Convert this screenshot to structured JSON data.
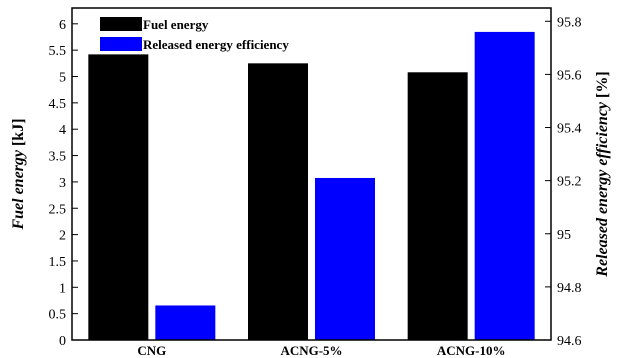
{
  "chart_data": {
    "type": "bar",
    "categories": [
      "CNG",
      "ACNG-5%",
      "ACNG-10%"
    ],
    "series": [
      {
        "name": "Fuel energy",
        "axis": "left",
        "color": "#000000",
        "values": [
          5.42,
          5.25,
          5.08
        ]
      },
      {
        "name": "Released energy efficiency",
        "axis": "right",
        "color": "#0000ff",
        "values": [
          94.73,
          95.21,
          95.76
        ]
      }
    ],
    "y_left": {
      "label_italic": "Fuel energy",
      "label_unit": " [kJ]",
      "range": [
        0,
        6.3
      ],
      "ticks": [
        "0",
        "0.5",
        "1",
        "1.5",
        "2",
        "2.5",
        "3",
        "3.5",
        "4",
        "4.5",
        "5",
        "5.5",
        "6"
      ],
      "tick_values": [
        0,
        0.5,
        1,
        1.5,
        2,
        2.5,
        3,
        3.5,
        4,
        4.5,
        5,
        5.5,
        6
      ]
    },
    "y_right": {
      "label_italic": "Released energy efficiency",
      "label_unit": " [%]",
      "range": [
        94.6,
        95.85
      ],
      "ticks": [
        "94.6",
        "94.8",
        "95",
        "95.2",
        "95.4",
        "95.6",
        "95.8"
      ],
      "tick_values": [
        94.6,
        94.8,
        95.0,
        95.2,
        95.4,
        95.6,
        95.8
      ]
    },
    "legend": {
      "placement": "top-left",
      "entries": [
        "Fuel energy",
        "Released energy efficiency"
      ]
    },
    "grid": false
  }
}
